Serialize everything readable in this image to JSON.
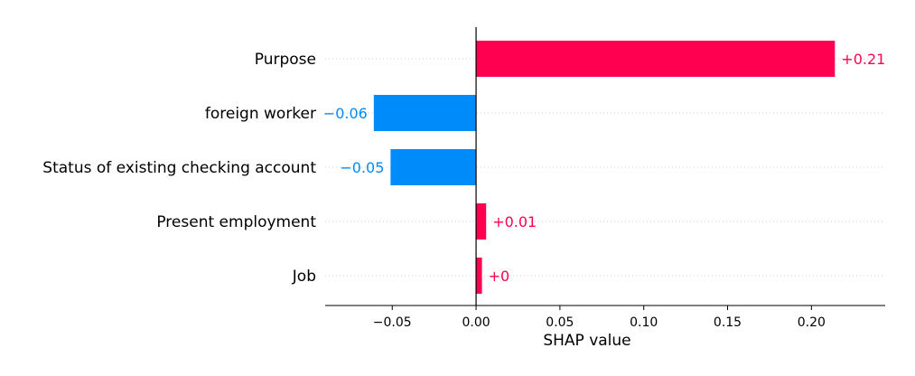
{
  "chart_data": {
    "type": "bar",
    "orientation": "horizontal",
    "categories": [
      "Purpose",
      "foreign worker",
      "Status of existing checking account",
      "Present employment",
      "Job"
    ],
    "values": [
      0.214,
      -0.061,
      -0.051,
      0.006,
      0.0035
    ],
    "value_labels": [
      "+0.21",
      "−0.06",
      "−0.05",
      "+0.01",
      "+0"
    ],
    "xlabel": "SHAP value",
    "xlim": [
      -0.09,
      0.244
    ],
    "xticks": [
      -0.05,
      0.0,
      0.05,
      0.1,
      0.15,
      0.2
    ],
    "xtick_labels": [
      "−0.05",
      "0.00",
      "0.05",
      "0.10",
      "0.15",
      "0.20"
    ],
    "grid": "horizontal dotted guides per feature",
    "zero_line": true,
    "colors": {
      "positive": "#ff0051",
      "negative": "#008bfb"
    }
  }
}
